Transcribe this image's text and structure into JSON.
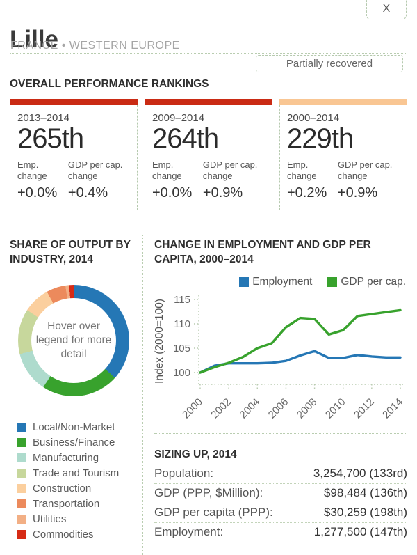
{
  "header": {
    "title": "Lille",
    "subtitle": "FRANCE • WESTERN EUROPE",
    "close_label": "X",
    "status_badge": "Partially recovered"
  },
  "rankings": {
    "heading": "OVERALL PERFORMANCE RANKINGS",
    "cards": [
      {
        "period": "2013–2014",
        "rank": "265th",
        "emp_label": "Emp. change",
        "gdp_label": "GDP per cap. change",
        "emp_change": "+0.0%",
        "gdp_change": "+0.4%",
        "bar_color": "#ca2b14"
      },
      {
        "period": "2009–2014",
        "rank": "264th",
        "emp_label": "Emp. change",
        "gdp_label": "GDP per cap. change",
        "emp_change": "+0.0%",
        "gdp_change": "+0.9%",
        "bar_color": "#ca2b14"
      },
      {
        "period": "2000–2014",
        "rank": "229th",
        "emp_label": "Emp. change",
        "gdp_label": "GDP per cap. change",
        "emp_change": "+0.2%",
        "gdp_change": "+0.9%",
        "bar_color": "#f9c693"
      }
    ]
  },
  "industry": {
    "heading": "SHARE OF OUTPUT BY INDUSTRY, 2014",
    "center_text": "Hover over legend for more detail"
  },
  "employment_chart": {
    "heading": "CHANGE IN EMPLOYMENT AND GDP PER CAPITA, 2000–2014"
  },
  "sizing": {
    "heading": "SIZING UP, 2014",
    "rows": [
      {
        "label": "Population:",
        "value": "3,254,700 (133rd)"
      },
      {
        "label": "GDP (PPP, $Million):",
        "value": "$98,484 (136th)"
      },
      {
        "label": "GDP per capita (PPP):",
        "value": "$30,259 (198th)"
      },
      {
        "label": "Employment:",
        "value": "1,277,500 (147th)"
      }
    ]
  },
  "chart_data": [
    {
      "type": "pie",
      "subtype": "donut",
      "title": "SHARE OF OUTPUT BY INDUSTRY, 2014",
      "labels": [
        "Local/Non-Market",
        "Business/Finance",
        "Manufacturing",
        "Trade and Tourism",
        "Construction",
        "Transportation",
        "Utilities",
        "Commodities"
      ],
      "values": [
        36.7,
        22.5,
        11.9,
        13.1,
        7.8,
        5.6,
        1.1,
        1.3
      ],
      "colors": [
        "#2577b5",
        "#38a22d",
        "#aedbcd",
        "#c7d79c",
        "#fbcf9e",
        "#ec8a5c",
        "#f2af85",
        "#d62b15"
      ],
      "legend_position": "bottom-left",
      "center_text": "Hover over legend for more detail"
    },
    {
      "type": "line",
      "title": "CHANGE IN EMPLOYMENT AND GDP PER CAPITA, 2000–2014",
      "ylabel": "Index (2000=100)",
      "x": [
        2000,
        2001,
        2002,
        2003,
        2004,
        2005,
        2006,
        2007,
        2008,
        2009,
        2010,
        2011,
        2012,
        2013,
        2014
      ],
      "series": [
        {
          "name": "Employment",
          "color": "#2577b5",
          "values": [
            100,
            101.4,
            101.9,
            101.9,
            101.9,
            102.0,
            102.4,
            103.5,
            104.4,
            103.0,
            103.0,
            103.6,
            103.3,
            103.1,
            103.1
          ]
        },
        {
          "name": "GDP per cap.",
          "color": "#38a22d",
          "values": [
            100,
            101.1,
            102.0,
            103.2,
            105.0,
            106.0,
            109.3,
            111.2,
            111.0,
            107.8,
            108.7,
            111.6,
            112.0,
            112.4,
            112.8
          ]
        }
      ],
      "yticks": [
        100,
        105,
        110,
        115
      ],
      "xticks": [
        2000,
        2002,
        2004,
        2006,
        2008,
        2010,
        2012,
        2014
      ],
      "ylim": [
        98,
        116.5
      ],
      "grid": false,
      "legend_position": "top"
    }
  ]
}
